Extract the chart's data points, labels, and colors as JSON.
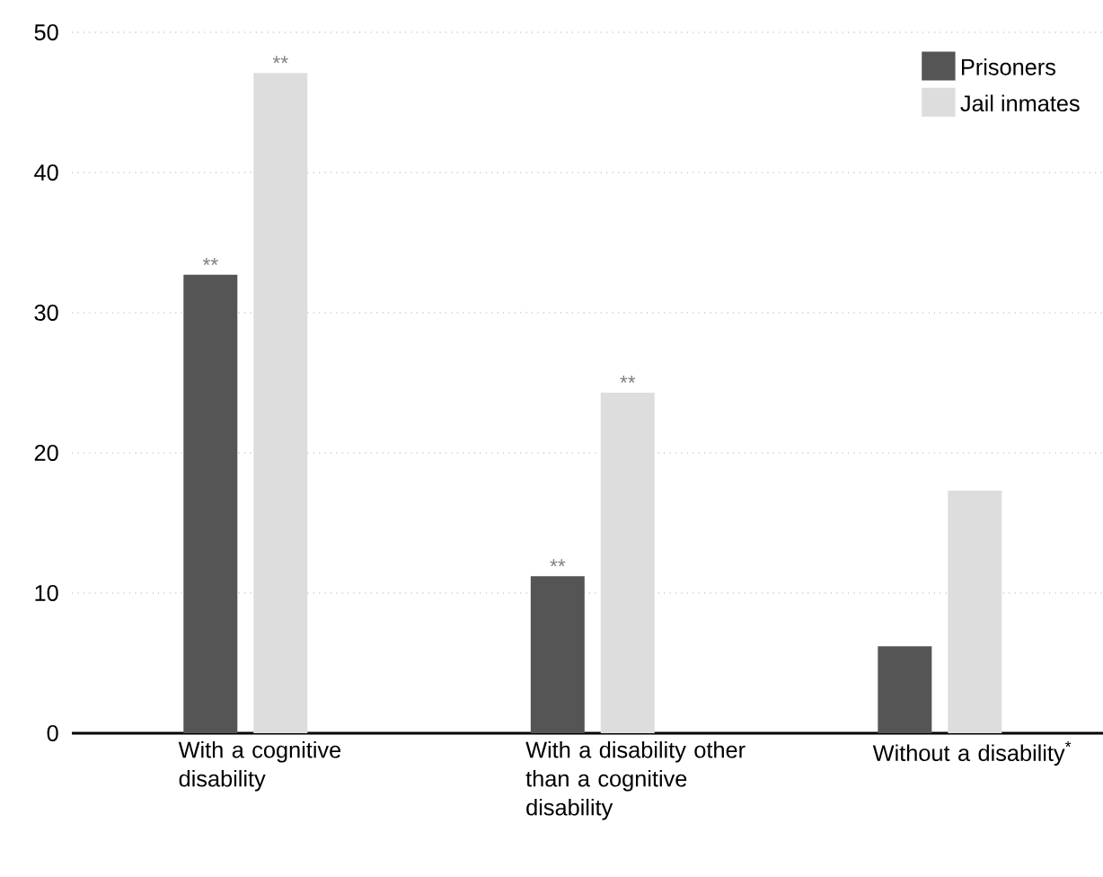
{
  "chart_data": {
    "type": "bar",
    "categories": [
      "With a cognitive disability",
      "With a disability other than a cognitive disability",
      "Without a disability$^{*}$"
    ],
    "series": [
      {
        "name": "Prisoners",
        "color": "#555555",
        "values": [
          32.7,
          11.2,
          6.2
        ]
      },
      {
        "name": "Jail inmates",
        "color": "#dddddd",
        "values": [
          47.1,
          24.3,
          17.3
        ]
      }
    ],
    "ylim": [
      0,
      50
    ],
    "yticks": [
      0,
      10,
      20,
      30,
      40,
      50
    ],
    "grid": "y",
    "legend": "top right",
    "annotations": [
      "**",
      {
        "text": "**",
        "x": "With a cognitive disability",
        "y": 47.1
      },
      "**",
      {
        "text": "**",
        "x": "With a disability other than a cognitive disability",
        "y": 24.3
      }
    ]
  }
}
